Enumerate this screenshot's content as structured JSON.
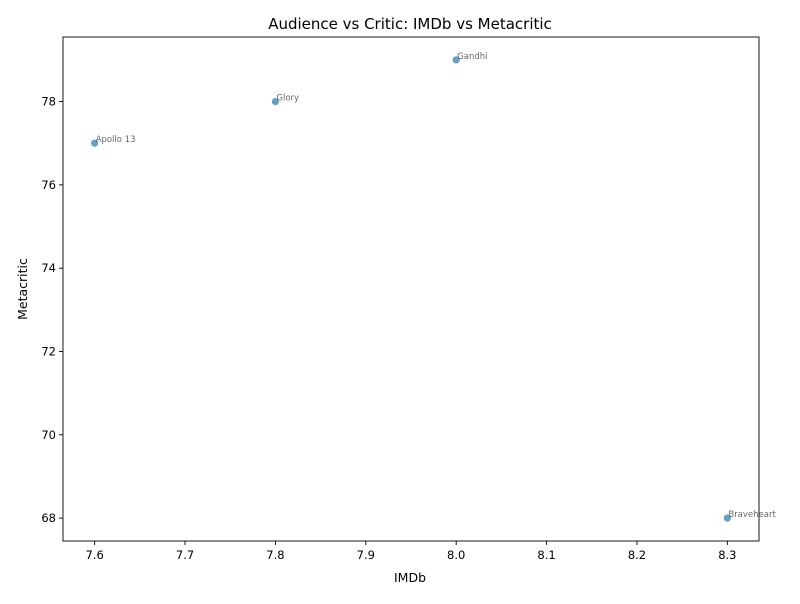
{
  "chart_data": {
    "type": "scatter",
    "title": "Audience vs Critic: IMDb vs Metacritic",
    "xlabel": "IMDb",
    "ylabel": "Metacritic",
    "xlim": [
      7.565,
      8.335
    ],
    "ylim": [
      67.45,
      79.55
    ],
    "xticks": [
      7.6,
      7.7,
      7.8,
      7.9,
      8.0,
      8.1,
      8.2,
      8.3
    ],
    "yticks": [
      68,
      70,
      72,
      74,
      76,
      78
    ],
    "grid": false,
    "points": [
      {
        "label": "Apollo 13",
        "x": 7.6,
        "y": 77
      },
      {
        "label": "Glory",
        "x": 7.8,
        "y": 78
      },
      {
        "label": "Gandhi",
        "x": 8.0,
        "y": 79
      },
      {
        "label": "Braveheart",
        "x": 8.3,
        "y": 68
      }
    ],
    "colors": {
      "point": "#1f77b4",
      "label": "#555555"
    }
  }
}
